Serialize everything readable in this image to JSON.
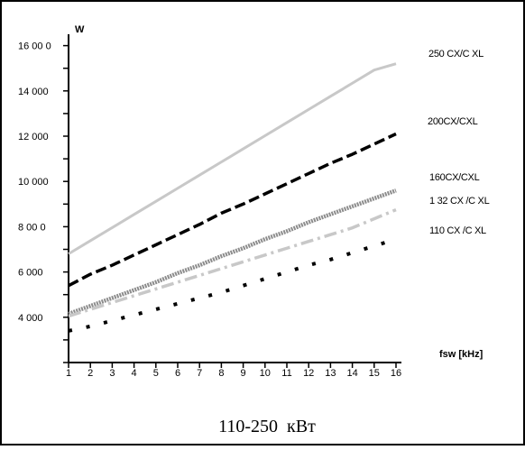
{
  "chart_data": {
    "type": "line",
    "caption": "110-250  кВт",
    "ylabel": "W",
    "xlabel": "fsw [kHz]",
    "ylim": [
      2000,
      16000
    ],
    "y_tick_labels": [
      "16 00 0",
      "14 000",
      "12 000",
      "10 000",
      "8 00 0",
      "6 000",
      "4 000"
    ],
    "y_tick_values": [
      16000,
      14000,
      12000,
      10000,
      8000,
      6000,
      4000
    ],
    "xlim": [
      1,
      16
    ],
    "x": [
      1,
      2,
      3,
      4,
      5,
      6,
      7,
      8,
      9,
      10,
      11,
      12,
      13,
      14,
      15,
      16
    ],
    "x_tick_labels": [
      "1",
      "2",
      "3",
      "4",
      "5",
      "6",
      "7",
      "8",
      "9",
      "10",
      "11",
      "12",
      "13",
      "14",
      "15",
      "16"
    ],
    "grid": false,
    "legend": "labels at right end of each line",
    "series": [
      {
        "name": "250 CX/C XL",
        "color": "#c8c8c8",
        "style": "solid",
        "values": [
          6800,
          7380,
          7960,
          8540,
          9120,
          9700,
          10280,
          10860,
          11440,
          12020,
          12600,
          13180,
          13760,
          14340,
          14920,
          15200
        ]
      },
      {
        "name": "200CX/CXL",
        "color": "#000000",
        "style": "dashed",
        "values": [
          5400,
          5900,
          6300,
          6750,
          7200,
          7650,
          8100,
          8600,
          9000,
          9450,
          9900,
          10350,
          10800,
          11200,
          11650,
          12100
        ]
      },
      {
        "name": "160CX/CXL",
        "color": "#8c8c8c",
        "style": "dotted-thick",
        "values": [
          4150,
          4500,
          4850,
          5200,
          5550,
          5950,
          6300,
          6700,
          7050,
          7450,
          7800,
          8200,
          8550,
          8900,
          9250,
          9600
        ]
      },
      {
        "name": "1 32 CX /C XL",
        "color": "#c8c8c8",
        "style": "dash-dot",
        "values": [
          4050,
          4350,
          4650,
          4950,
          5250,
          5550,
          5850,
          6150,
          6450,
          6750,
          7050,
          7350,
          7650,
          7950,
          8350,
          8750
        ]
      },
      {
        "name": "110 CX /C XL",
        "color": "#000000",
        "style": "sparse-dotted",
        "values": [
          3400,
          3600,
          3850,
          4100,
          4350,
          4600,
          4850,
          5100,
          5400,
          5700,
          6000,
          6300,
          6550,
          6850,
          7150,
          7450
        ]
      }
    ]
  }
}
